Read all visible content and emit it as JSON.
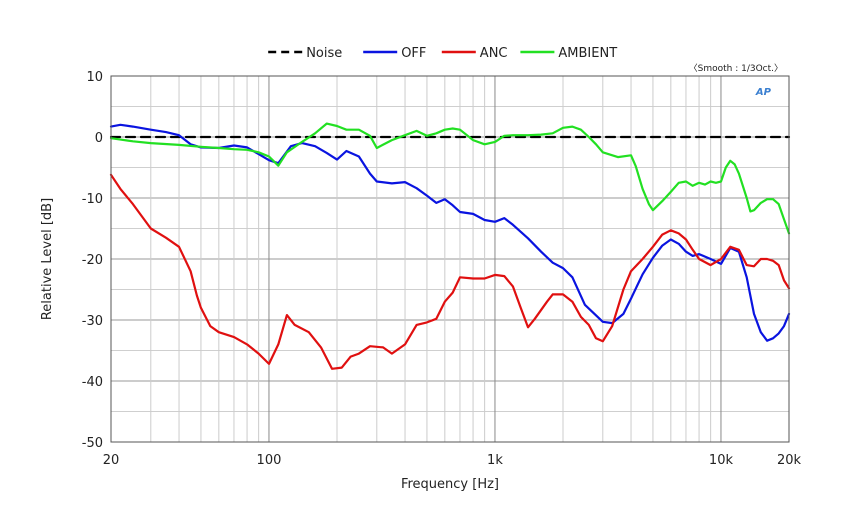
{
  "chart_data": {
    "type": "line",
    "xscale": "log",
    "xlabel": "Frequency [Hz]",
    "ylabel": "Relative Level [dB]",
    "xlim": [
      20,
      20000
    ],
    "ylim": [
      -50,
      10
    ],
    "grid": true,
    "legend_position": "top",
    "smooth_note": "〈Smooth : 1/3Oct.〉",
    "ap_badge": "AP",
    "x_ticks": [
      {
        "value": 20,
        "label": "20"
      },
      {
        "value": 100,
        "label": "100"
      },
      {
        "value": 1000,
        "label": "1k"
      },
      {
        "value": 10000,
        "label": "10k"
      },
      {
        "value": 20000,
        "label": "20k"
      }
    ],
    "y_ticks": [
      {
        "value": 10,
        "label": "10"
      },
      {
        "value": 0,
        "label": "0"
      },
      {
        "value": -10,
        "label": "-10"
      },
      {
        "value": -20,
        "label": "-20"
      },
      {
        "value": -30,
        "label": "-30"
      },
      {
        "value": -40,
        "label": "-40"
      },
      {
        "value": -50,
        "label": "-50"
      }
    ],
    "series": [
      {
        "name": "Noise",
        "color": "#000000",
        "dashed": true,
        "points": [
          [
            20,
            0
          ],
          [
            20000,
            0
          ]
        ]
      },
      {
        "name": "OFF",
        "color": "#0a14e0",
        "dashed": false,
        "points": [
          [
            20,
            1.7
          ],
          [
            22,
            2.0
          ],
          [
            25,
            1.7
          ],
          [
            30,
            1.2
          ],
          [
            35,
            0.8
          ],
          [
            40,
            0.3
          ],
          [
            45,
            -1.2
          ],
          [
            50,
            -1.7
          ],
          [
            60,
            -1.8
          ],
          [
            70,
            -1.4
          ],
          [
            80,
            -1.7
          ],
          [
            90,
            -2.8
          ],
          [
            100,
            -3.8
          ],
          [
            110,
            -4.3
          ],
          [
            125,
            -1.5
          ],
          [
            140,
            -1.0
          ],
          [
            160,
            -1.5
          ],
          [
            180,
            -2.6
          ],
          [
            200,
            -3.7
          ],
          [
            220,
            -2.3
          ],
          [
            250,
            -3.2
          ],
          [
            280,
            -6.0
          ],
          [
            300,
            -7.3
          ],
          [
            350,
            -7.6
          ],
          [
            400,
            -7.4
          ],
          [
            450,
            -8.4
          ],
          [
            500,
            -9.6
          ],
          [
            550,
            -10.8
          ],
          [
            600,
            -10.2
          ],
          [
            650,
            -11.2
          ],
          [
            700,
            -12.3
          ],
          [
            800,
            -12.6
          ],
          [
            900,
            -13.6
          ],
          [
            1000,
            -13.9
          ],
          [
            1100,
            -13.3
          ],
          [
            1200,
            -14.4
          ],
          [
            1400,
            -16.6
          ],
          [
            1600,
            -18.8
          ],
          [
            1800,
            -20.6
          ],
          [
            2000,
            -21.5
          ],
          [
            2200,
            -23.0
          ],
          [
            2500,
            -27.5
          ],
          [
            3000,
            -30.3
          ],
          [
            3300,
            -30.5
          ],
          [
            3700,
            -29.0
          ],
          [
            4000,
            -26.5
          ],
          [
            4500,
            -22.5
          ],
          [
            5000,
            -19.8
          ],
          [
            5500,
            -17.8
          ],
          [
            6000,
            -16.8
          ],
          [
            6500,
            -17.5
          ],
          [
            7000,
            -18.8
          ],
          [
            7500,
            -19.5
          ],
          [
            8000,
            -19.2
          ],
          [
            9000,
            -20.0
          ],
          [
            10000,
            -20.8
          ],
          [
            11000,
            -18.2
          ],
          [
            12000,
            -18.8
          ],
          [
            13000,
            -23.0
          ],
          [
            14000,
            -29.0
          ],
          [
            15000,
            -32.0
          ],
          [
            16000,
            -33.4
          ],
          [
            17000,
            -33.0
          ],
          [
            18000,
            -32.2
          ],
          [
            19000,
            -31.0
          ],
          [
            20000,
            -29.0
          ]
        ]
      },
      {
        "name": "ANC",
        "color": "#e01010",
        "dashed": false,
        "points": [
          [
            20,
            -6.2
          ],
          [
            22,
            -8.5
          ],
          [
            25,
            -11.0
          ],
          [
            30,
            -15.0
          ],
          [
            35,
            -16.5
          ],
          [
            40,
            -18.0
          ],
          [
            45,
            -22.0
          ],
          [
            48,
            -26.0
          ],
          [
            50,
            -28.0
          ],
          [
            55,
            -31.0
          ],
          [
            60,
            -32.0
          ],
          [
            70,
            -32.8
          ],
          [
            80,
            -34.0
          ],
          [
            90,
            -35.5
          ],
          [
            100,
            -37.2
          ],
          [
            110,
            -34.0
          ],
          [
            120,
            -29.2
          ],
          [
            130,
            -30.8
          ],
          [
            150,
            -32.0
          ],
          [
            170,
            -34.5
          ],
          [
            190,
            -38.0
          ],
          [
            210,
            -37.8
          ],
          [
            230,
            -36.0
          ],
          [
            250,
            -35.5
          ],
          [
            280,
            -34.3
          ],
          [
            320,
            -34.5
          ],
          [
            350,
            -35.5
          ],
          [
            400,
            -34.0
          ],
          [
            450,
            -30.8
          ],
          [
            500,
            -30.4
          ],
          [
            550,
            -29.8
          ],
          [
            600,
            -27.0
          ],
          [
            650,
            -25.5
          ],
          [
            700,
            -23.0
          ],
          [
            800,
            -23.2
          ],
          [
            900,
            -23.2
          ],
          [
            1000,
            -22.6
          ],
          [
            1100,
            -22.8
          ],
          [
            1200,
            -24.5
          ],
          [
            1300,
            -28.0
          ],
          [
            1400,
            -31.2
          ],
          [
            1500,
            -29.8
          ],
          [
            1700,
            -27.0
          ],
          [
            1800,
            -25.8
          ],
          [
            2000,
            -25.8
          ],
          [
            2200,
            -27.0
          ],
          [
            2400,
            -29.5
          ],
          [
            2600,
            -30.8
          ],
          [
            2800,
            -33.0
          ],
          [
            3000,
            -33.5
          ],
          [
            3300,
            -31.0
          ],
          [
            3700,
            -25.0
          ],
          [
            4000,
            -22.0
          ],
          [
            4500,
            -20.0
          ],
          [
            5000,
            -18.0
          ],
          [
            5500,
            -16.0
          ],
          [
            6000,
            -15.3
          ],
          [
            6500,
            -15.8
          ],
          [
            7000,
            -16.8
          ],
          [
            7500,
            -18.5
          ],
          [
            8000,
            -20.0
          ],
          [
            9000,
            -21.0
          ],
          [
            10000,
            -20.0
          ],
          [
            11000,
            -18.0
          ],
          [
            12000,
            -18.5
          ],
          [
            13000,
            -21.0
          ],
          [
            14000,
            -21.2
          ],
          [
            15000,
            -20.0
          ],
          [
            16000,
            -20.0
          ],
          [
            17000,
            -20.3
          ],
          [
            18000,
            -21.0
          ],
          [
            19000,
            -23.5
          ],
          [
            20000,
            -24.8
          ]
        ]
      },
      {
        "name": "AMBIENT",
        "color": "#22e022",
        "dashed": false,
        "points": [
          [
            20,
            -0.2
          ],
          [
            25,
            -0.7
          ],
          [
            30,
            -1.0
          ],
          [
            40,
            -1.3
          ],
          [
            50,
            -1.6
          ],
          [
            60,
            -1.8
          ],
          [
            70,
            -2.0
          ],
          [
            80,
            -2.1
          ],
          [
            90,
            -2.5
          ],
          [
            100,
            -3.2
          ],
          [
            110,
            -4.7
          ],
          [
            120,
            -2.5
          ],
          [
            140,
            -0.8
          ],
          [
            160,
            0.6
          ],
          [
            180,
            2.2
          ],
          [
            200,
            1.8
          ],
          [
            220,
            1.2
          ],
          [
            250,
            1.2
          ],
          [
            280,
            0.2
          ],
          [
            300,
            -1.8
          ],
          [
            350,
            -0.5
          ],
          [
            400,
            0.3
          ],
          [
            450,
            1.0
          ],
          [
            500,
            0.2
          ],
          [
            550,
            0.6
          ],
          [
            600,
            1.2
          ],
          [
            650,
            1.4
          ],
          [
            700,
            1.2
          ],
          [
            800,
            -0.5
          ],
          [
            900,
            -1.2
          ],
          [
            1000,
            -0.8
          ],
          [
            1100,
            0.2
          ],
          [
            1200,
            0.3
          ],
          [
            1400,
            0.3
          ],
          [
            1600,
            0.4
          ],
          [
            1800,
            0.6
          ],
          [
            2000,
            1.5
          ],
          [
            2200,
            1.7
          ],
          [
            2400,
            1.2
          ],
          [
            2600,
            0.0
          ],
          [
            2800,
            -1.2
          ],
          [
            3000,
            -2.5
          ],
          [
            3500,
            -3.3
          ],
          [
            4000,
            -3.0
          ],
          [
            4200,
            -4.8
          ],
          [
            4500,
            -8.5
          ],
          [
            4800,
            -11.0
          ],
          [
            5000,
            -12.0
          ],
          [
            5500,
            -10.5
          ],
          [
            6000,
            -9.0
          ],
          [
            6500,
            -7.5
          ],
          [
            7000,
            -7.3
          ],
          [
            7500,
            -8.0
          ],
          [
            8000,
            -7.5
          ],
          [
            8500,
            -7.8
          ],
          [
            9000,
            -7.3
          ],
          [
            9500,
            -7.5
          ],
          [
            10000,
            -7.3
          ],
          [
            10500,
            -5.0
          ],
          [
            11000,
            -3.9
          ],
          [
            11500,
            -4.5
          ],
          [
            12000,
            -6.0
          ],
          [
            13000,
            -10.0
          ],
          [
            13500,
            -12.2
          ],
          [
            14000,
            -12.0
          ],
          [
            15000,
            -10.8
          ],
          [
            16000,
            -10.2
          ],
          [
            17000,
            -10.2
          ],
          [
            18000,
            -11.0
          ],
          [
            19000,
            -13.5
          ],
          [
            20000,
            -15.8
          ]
        ]
      }
    ]
  }
}
